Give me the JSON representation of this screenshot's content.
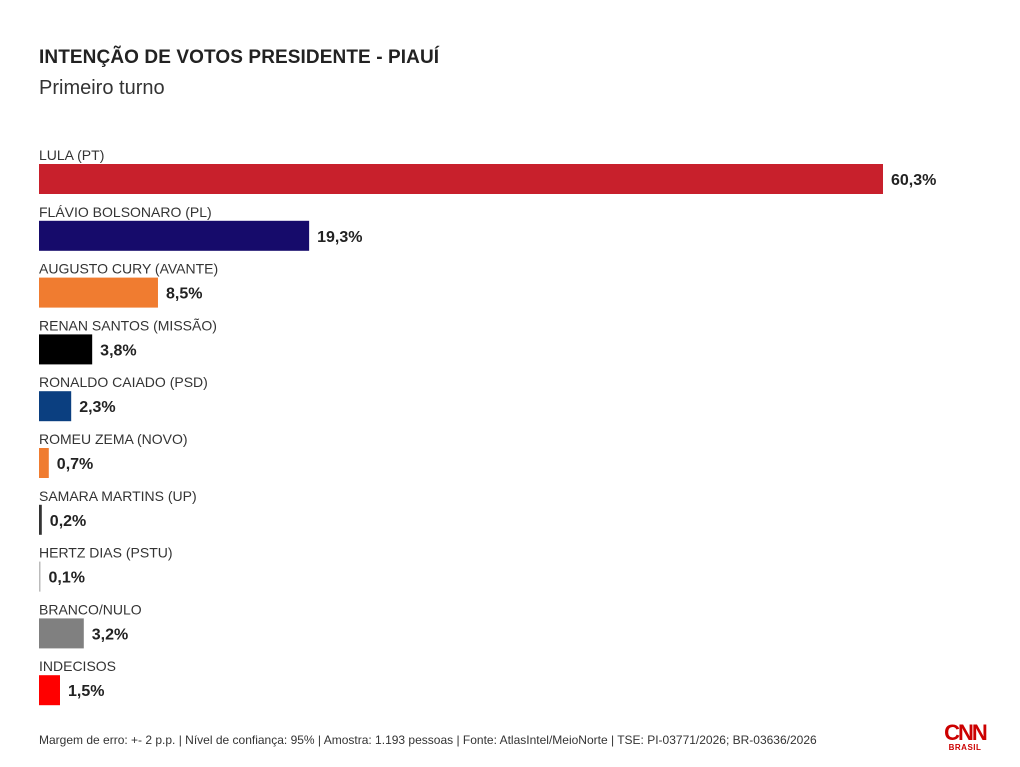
{
  "title": "INTENÇÃO DE VOTOS PRESIDENTE - PIAUÍ",
  "subtitle": "Primeiro turno",
  "footer": "Margem de erro: +- 2 p.p. | Nível de confiança: 95% | Amostra: 1.193 pessoas | Fonte: AtlasIntel/MeioNorte | TSE: PI-03771/2026; BR-03636/2026",
  "logo": {
    "text": "CNN",
    "sub": "BRASIL",
    "color": "#cc0000"
  },
  "chart_data": {
    "type": "bar",
    "orientation": "horizontal",
    "title": "INTENÇÃO DE VOTOS PRESIDENTE - PIAUÍ",
    "subtitle": "Primeiro turno",
    "value_suffix": "%",
    "categories": [
      "LULA (PT)",
      "FLÁVIO BOLSONARO (PL)",
      "AUGUSTO CURY (AVANTE)",
      "RENAN SANTOS (MISSÃO)",
      "RONALDO CAIADO (PSD)",
      "ROMEU ZEMA (NOVO)",
      "SAMARA MARTINS (UP)",
      "HERTZ DIAS (PSTU)",
      "BRANCO/NULO",
      "INDECISOS"
    ],
    "values": [
      60.3,
      19.3,
      8.5,
      3.8,
      2.3,
      0.7,
      0.2,
      0.1,
      3.2,
      1.5
    ],
    "value_labels": [
      "60,3%",
      "19,3%",
      "8,5%",
      "3,8%",
      "2,3%",
      "0,7%",
      "0,2%",
      "0,1%",
      "3,2%",
      "1,5%"
    ],
    "colors": [
      "#c8202c",
      "#160b6b",
      "#f07c30",
      "#000000",
      "#0b3f80",
      "#f07c30",
      "#333333",
      "#bbbbbb",
      "#808080",
      "#ff0000"
    ],
    "xlim": [
      0,
      60.3
    ],
    "grid": false,
    "legend": "none"
  }
}
